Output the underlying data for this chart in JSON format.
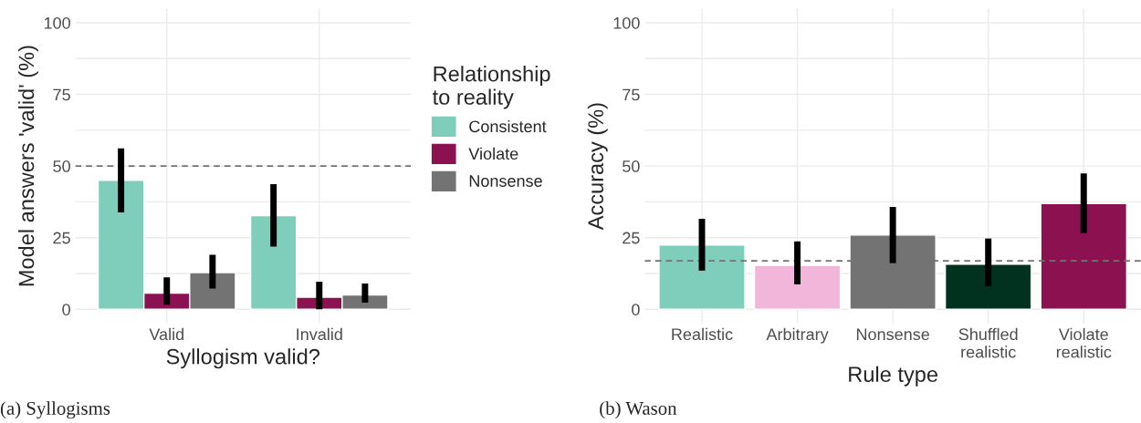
{
  "chart_data": [
    {
      "type": "bar",
      "xlabel": "Syllogism valid?",
      "ylabel": "Model answers 'valid' (%)",
      "legend_title": "Relationship\nto reality",
      "legend": "right",
      "grid": true,
      "categories": [
        "Valid",
        "Invalid"
      ],
      "ylim": [
        -5,
        105
      ],
      "yticks": [
        0,
        {
          "value": 12.5,
          "label": null
        },
        25,
        {
          "value": 37.5,
          "label": null
        },
        50,
        {
          "value": 62.5,
          "label": null
        },
        75,
        {
          "value": 87.5,
          "label": null
        },
        100
      ],
      "series": [
        {
          "name": "Consistent",
          "color": "#7fcdbb",
          "values": [
            45.0,
            32.7
          ],
          "errors": [
            [
              33.8,
              56.2
            ],
            [
              21.9,
              43.7
            ]
          ]
        },
        {
          "name": "Violate",
          "color": "#8c1150",
          "values": [
            5.6,
            4.2
          ],
          "errors": [
            [
              1.6,
              11.1
            ],
            [
              0,
              9.6
            ]
          ]
        },
        {
          "name": "Nonsense",
          "color": "#737373",
          "values": [
            12.8,
            5.0
          ],
          "errors": [
            [
              7.2,
              19.0
            ],
            [
              2.3,
              9.0
            ]
          ]
        }
      ],
      "ref_lines": [
        {
          "axis": "y",
          "value": 50,
          "line_style": "dashed",
          "color": "#737373"
        }
      ],
      "annotations": [
        "(a) Syllogisms"
      ]
    },
    {
      "type": "bar",
      "xlabel": "Rule type",
      "ylabel": "Accuracy (%)",
      "grid": true,
      "categories": [
        "Realistic",
        "Arbitrary",
        "Nonsense",
        "Shuffled\nrealistic",
        "Violate\nrealistic"
      ],
      "ylim": [
        -5,
        105
      ],
      "yticks": [
        0,
        {
          "value": 12.5,
          "label": null
        },
        25,
        {
          "value": 37.5,
          "label": null
        },
        50,
        {
          "value": 62.5,
          "label": null
        },
        75,
        {
          "value": 87.5,
          "label": null
        },
        100
      ],
      "values": [
        22.4,
        15.3,
        25.9,
        15.7,
        36.9
      ],
      "colors": [
        "#7fcdbb",
        "#f1b6da",
        "#737373",
        "#00331f",
        "#8c1150"
      ],
      "errors": [
        [
          13.5,
          31.6
        ],
        [
          8.7,
          23.7
        ],
        [
          16.1,
          35.7
        ],
        [
          8.0,
          24.7
        ],
        [
          26.6,
          47.4
        ]
      ],
      "ref_lines": [
        {
          "axis": "y",
          "value": 16.9,
          "line_style": "dashed",
          "color": "#737373"
        }
      ],
      "annotations": [
        "(b) Wason"
      ]
    }
  ]
}
